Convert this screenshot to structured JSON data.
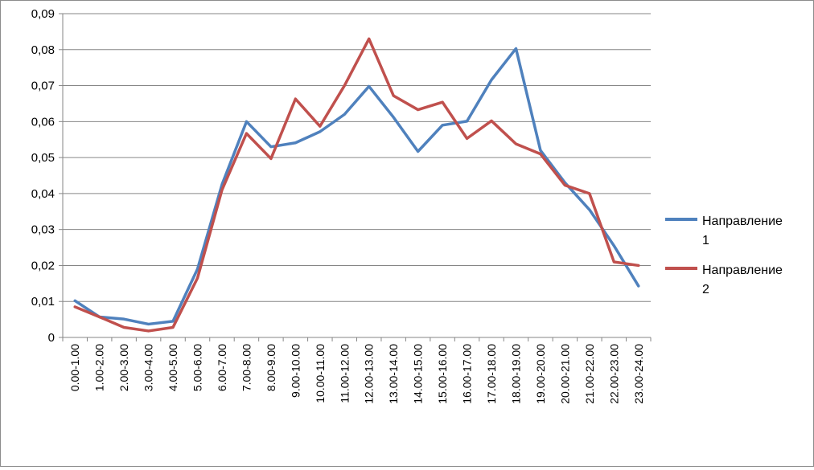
{
  "chart_data": {
    "type": "line",
    "title": "",
    "xlabel": "",
    "ylabel": "",
    "ylim": [
      0,
      0.09
    ],
    "grid": "horizontal",
    "legend_position": "right",
    "y_ticks": [
      "0",
      "0,01",
      "0,02",
      "0,03",
      "0,04",
      "0,05",
      "0,06",
      "0,07",
      "0,08",
      "0,09"
    ],
    "x": [
      "0.00-1.00",
      "1.00-2.00",
      "2.00-3.00",
      "3.00-4.00",
      "4.00-5.00",
      "5.00-6.00",
      "6.00-7.00",
      "7.00-8.00",
      "8.00-9.00",
      "9.00-10.00",
      "10.00-11.00",
      "11.00-12.00",
      "12.00-13.00",
      "13.00-14.00",
      "14.00-15.00",
      "15.00-16.00",
      "16.00-17.00",
      "17.00-18.00",
      "18.00-19.00",
      "19.00-20.00",
      "20.00-21.00",
      "21.00-22.00",
      "22.00-23.00",
      "23.00-24.00"
    ],
    "series": [
      {
        "name_line1": "Направление",
        "name_line2": "1",
        "color": "#4F81BD",
        "values": [
          0.0102,
          0.0057,
          0.0051,
          0.0037,
          0.0045,
          0.019,
          0.0425,
          0.06,
          0.053,
          0.0541,
          0.0572,
          0.062,
          0.0698,
          0.0612,
          0.0517,
          0.059,
          0.0601,
          0.0716,
          0.0803,
          0.052,
          0.043,
          0.0355,
          0.0255,
          0.0143
        ]
      },
      {
        "name_line1": "Направление",
        "name_line2": "2",
        "color": "#C0504D",
        "values": [
          0.0085,
          0.0057,
          0.0028,
          0.0018,
          0.0028,
          0.0165,
          0.041,
          0.0567,
          0.0497,
          0.0663,
          0.0587,
          0.07,
          0.083,
          0.0672,
          0.0633,
          0.0654,
          0.0553,
          0.0602,
          0.0538,
          0.051,
          0.0423,
          0.04,
          0.021,
          0.02
        ]
      }
    ]
  }
}
